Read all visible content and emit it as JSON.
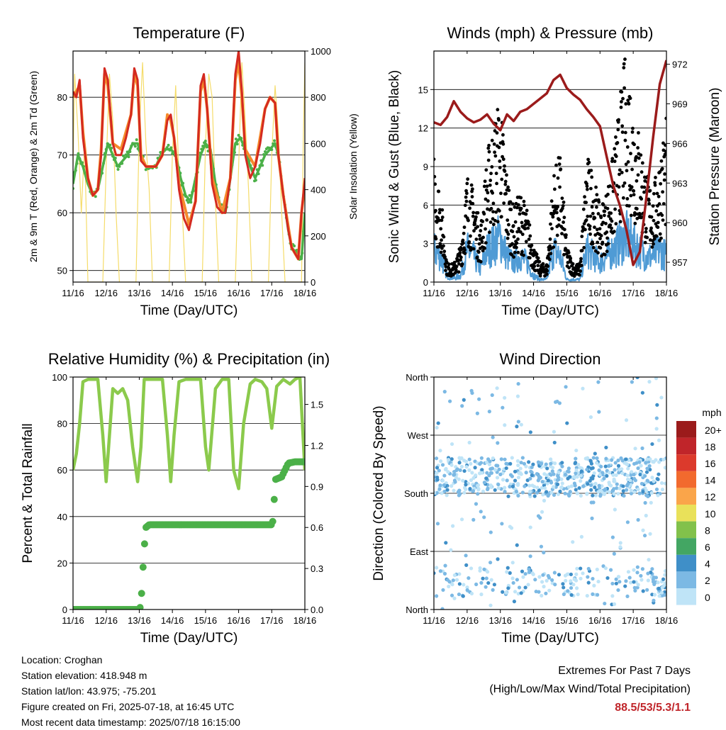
{
  "footer": {
    "location": "Location: Croghan",
    "elevation": "Station elevation: 418.948 m",
    "latlon": "Station lat/lon: 43.975; -75.201",
    "created": "Figure created on Fri, 2025-07-18, at 16:45 UTC",
    "recent": "Most recent data timestamp: 2025/07/18 16:15:00",
    "extremes_title": "Extremes For Past 7 Days",
    "extremes_subtitle": "(High/Low/Max Wind/Total Precipitation)",
    "extremes_values": "88.5/53/5.3/1.1"
  },
  "chart_data": [
    {
      "type": "line",
      "title": "Temperature (F)",
      "xlabel": "Time (Day/UTC)",
      "ylabel": "2m & 9m T (Red, Orange) & 2m Td (Green)",
      "y2label": "Solar Insolation (Yellow)",
      "x_ticks": [
        "11/16",
        "12/16",
        "13/16",
        "14/16",
        "15/16",
        "16/16",
        "17/16",
        "18/16"
      ],
      "xlim": [
        0,
        7
      ],
      "ylim": [
        48,
        88
      ],
      "y_ticks": [
        50,
        60,
        70,
        80
      ],
      "y2lim": [
        0,
        1000
      ],
      "y2_ticks": [
        0,
        200,
        400,
        600,
        800,
        1000
      ],
      "grid": true,
      "colors": {
        "t2m": "#d42a20",
        "t9m": "#f58a2b",
        "td": "#4bb048",
        "solar": "#f5dc6a"
      },
      "series": [
        {
          "key": "t2m",
          "x": [
            0,
            0.1,
            0.2,
            0.3,
            0.45,
            0.6,
            0.75,
            0.85,
            0.95,
            1.05,
            1.2,
            1.3,
            1.45,
            1.6,
            1.75,
            1.85,
            1.95,
            2.05,
            2.2,
            2.35,
            2.5,
            2.7,
            2.85,
            2.95,
            3.05,
            3.2,
            3.35,
            3.5,
            3.7,
            3.85,
            3.95,
            4.05,
            4.2,
            4.35,
            4.5,
            4.6,
            4.75,
            4.9,
            5.0,
            5.1,
            5.2,
            5.35,
            5.5,
            5.65,
            5.8,
            5.95,
            6.1,
            6.2,
            6.35,
            6.5,
            6.6,
            6.7,
            6.8,
            6.9,
            7.0
          ],
          "y": [
            81,
            80,
            83,
            73,
            66,
            63,
            64,
            70,
            85,
            83,
            72,
            70,
            70,
            73,
            77,
            85,
            83,
            69,
            68,
            68,
            68,
            70,
            76,
            77,
            73,
            64,
            59,
            57,
            62,
            82,
            84,
            78,
            65,
            61,
            60,
            60,
            66,
            84,
            88,
            81,
            70,
            66,
            68,
            72,
            78,
            80,
            79,
            70,
            63,
            57,
            54,
            53,
            52,
            60,
            66
          ]
        },
        {
          "key": "t9m",
          "x": [
            0,
            0.2,
            0.3,
            0.45,
            0.6,
            0.75,
            0.85,
            0.95,
            1.05,
            1.2,
            1.45,
            1.6,
            1.75,
            1.85,
            1.95,
            2.05,
            2.2,
            2.5,
            2.7,
            2.85,
            2.95,
            3.05,
            3.2,
            3.5,
            3.7,
            3.85,
            3.95,
            4.05,
            4.2,
            4.5,
            4.75,
            4.9,
            5.0,
            5.1,
            5.2,
            5.5,
            5.8,
            5.95,
            6.1,
            6.2,
            6.35,
            6.6,
            6.8,
            6.9,
            7.0
          ],
          "y": [
            80,
            82,
            74,
            66,
            63,
            64,
            71,
            84,
            82,
            72,
            71,
            74,
            77,
            84,
            82,
            70,
            68,
            68,
            70,
            77,
            76,
            73,
            65,
            58,
            62,
            81,
            83,
            78,
            66,
            60,
            66,
            83,
            86,
            80,
            71,
            68,
            78,
            80,
            79,
            70,
            63,
            54,
            52,
            60,
            65
          ]
        },
        {
          "key": "td",
          "x": [
            0,
            0.15,
            0.3,
            0.45,
            0.6,
            0.75,
            0.9,
            1.05,
            1.2,
            1.35,
            1.5,
            1.65,
            1.8,
            1.95,
            2.05,
            2.2,
            2.35,
            2.5,
            2.65,
            2.8,
            2.95,
            3.1,
            3.25,
            3.4,
            3.55,
            3.7,
            3.85,
            4.0,
            4.15,
            4.3,
            4.45,
            4.6,
            4.75,
            4.9,
            5.05,
            5.2,
            5.35,
            5.5,
            5.65,
            5.8,
            5.95,
            6.1,
            6.2,
            6.35,
            6.5,
            6.6,
            6.75,
            6.9,
            7.0
          ],
          "y": [
            65,
            70,
            68,
            65,
            63,
            64,
            68,
            72,
            70,
            68,
            69,
            70,
            72,
            72,
            70,
            68,
            68,
            68,
            70,
            71,
            71,
            70,
            66,
            63,
            62,
            66,
            70,
            72,
            71,
            65,
            61,
            60,
            66,
            72,
            73,
            71,
            68,
            66,
            68,
            70,
            71,
            72,
            70,
            63,
            57,
            54,
            53,
            52,
            60
          ]
        },
        {
          "key": "solar",
          "x": [
            0,
            0.05,
            0.15,
            0.25,
            0.35,
            0.45,
            0.9,
            1.0,
            1.1,
            1.2,
            1.3,
            1.4,
            1.9,
            2.0,
            2.1,
            2.2,
            2.3,
            2.4,
            2.9,
            3.0,
            3.1,
            3.2,
            3.3,
            3.4,
            3.9,
            4.0,
            4.1,
            4.2,
            4.3,
            4.4,
            4.9,
            5.0,
            5.1,
            5.2,
            5.3,
            5.4,
            5.9,
            6.0,
            6.1,
            6.2,
            6.3,
            6.4,
            6.9,
            6.95,
            7.0
          ],
          "y": [
            500,
            900,
            650,
            300,
            600,
            0,
            0,
            500,
            900,
            700,
            300,
            0,
            0,
            650,
            950,
            600,
            400,
            0,
            0,
            550,
            850,
            450,
            300,
            0,
            0,
            600,
            900,
            800,
            350,
            0,
            0,
            500,
            950,
            700,
            400,
            0,
            0,
            550,
            850,
            650,
            300,
            0,
            0,
            600,
            950
          ]
        }
      ]
    },
    {
      "type": "scatter",
      "title": "Winds (mph) & Pressure (mb)",
      "xlabel": "Time (Day/UTC)",
      "ylabel": "Sonic Wind & Gust (Blue, Black)",
      "y2label": "Station Pressure (Maroon)",
      "x_ticks": [
        "11/16",
        "12/16",
        "13/16",
        "14/16",
        "15/16",
        "16/16",
        "17/16",
        "18/16"
      ],
      "xlim": [
        0,
        7
      ],
      "ylim": [
        0,
        18
      ],
      "y_ticks": [
        0,
        3,
        6,
        9,
        12,
        15
      ],
      "y2lim": [
        955.5,
        973
      ],
      "y2_ticks": [
        957,
        960,
        963,
        966,
        969,
        972
      ],
      "grid": true,
      "colors": {
        "wind": "#4f9bd5",
        "gust": "#000000",
        "pressure": "#9b1b1b"
      },
      "series": [
        {
          "key": "wind",
          "x": [
            0,
            0.2,
            0.4,
            0.6,
            0.8,
            1.0,
            1.2,
            1.4,
            1.6,
            1.8,
            2.0,
            2.2,
            2.4,
            2.6,
            2.8,
            3.0,
            3.2,
            3.4,
            3.6,
            3.8,
            4.0,
            4.2,
            4.4,
            4.6,
            4.8,
            5.0,
            5.2,
            5.4,
            5.6,
            5.8,
            6.0,
            6.2,
            6.4,
            6.6,
            6.8,
            7.0
          ],
          "y": [
            2.5,
            2.0,
            0.5,
            0.3,
            0.5,
            2.5,
            2.0,
            1.0,
            2.5,
            3.0,
            3.5,
            2.0,
            1.5,
            2.0,
            1.5,
            0.5,
            0.2,
            0.2,
            2.5,
            2.0,
            0.2,
            0.2,
            0.2,
            2.5,
            2.0,
            1.5,
            2.0,
            2.5,
            3.0,
            3.5,
            3.0,
            2.5,
            2.0,
            2.0,
            2.5,
            2.0
          ]
        },
        {
          "key": "gust",
          "x": [
            0,
            0.2,
            0.4,
            0.6,
            0.8,
            1.0,
            1.2,
            1.4,
            1.6,
            1.8,
            2.0,
            2.2,
            2.4,
            2.6,
            2.8,
            3.0,
            3.2,
            3.4,
            3.6,
            3.8,
            4.0,
            4.2,
            4.4,
            4.6,
            4.8,
            5.0,
            5.2,
            5.4,
            5.6,
            5.8,
            6.0,
            6.2,
            6.4,
            6.6,
            6.8,
            7.0
          ],
          "y": [
            7,
            5,
            1,
            1,
            2,
            6,
            5,
            3,
            7,
            9,
            10,
            6,
            4,
            5,
            4,
            2,
            1,
            1,
            6,
            7,
            2,
            1,
            1,
            7,
            6,
            4,
            5,
            7,
            10,
            13,
            10,
            8,
            6,
            5,
            7,
            9
          ]
        },
        {
          "key": "pressure",
          "x": [
            0,
            0.2,
            0.4,
            0.6,
            0.8,
            1.0,
            1.2,
            1.4,
            1.6,
            1.8,
            2.0,
            2.2,
            2.4,
            2.6,
            2.8,
            3.0,
            3.2,
            3.4,
            3.6,
            3.8,
            4.0,
            4.2,
            4.4,
            4.6,
            4.8,
            5.0,
            5.2,
            5.4,
            5.6,
            5.8,
            6.0,
            6.2,
            6.4,
            6.6,
            6.8,
            7.0
          ],
          "y": [
            967.6,
            967.4,
            968.0,
            969.2,
            968.4,
            967.9,
            967.6,
            967.8,
            968.2,
            967.5,
            967.0,
            968.2,
            967.7,
            968.4,
            968.6,
            969.0,
            969.4,
            969.8,
            970.8,
            971.2,
            970.2,
            969.7,
            969.3,
            968.6,
            968.0,
            967.3,
            965.0,
            962.8,
            961.3,
            959.4,
            956.8,
            957.8,
            962.0,
            966.5,
            970.5,
            972.3
          ]
        }
      ]
    },
    {
      "type": "line",
      "title": "Relative Humidity (%) & Precipitation (in)",
      "xlabel": "Time (Day/UTC)",
      "ylabel": "Percent & Total Rainfall",
      "x_ticks": [
        "11/16",
        "12/16",
        "13/16",
        "14/16",
        "15/16",
        "16/16",
        "17/16",
        "18/16"
      ],
      "xlim": [
        0,
        7
      ],
      "ylim": [
        0,
        100
      ],
      "y_ticks": [
        0,
        20,
        40,
        60,
        80,
        100
      ],
      "y2lim": [
        0,
        1.7
      ],
      "y2_ticks": [
        "0.0",
        "0.3",
        "0.6",
        "0.9",
        "1.2",
        "1.5"
      ],
      "grid": true,
      "colors": {
        "rh": "#8bca4c",
        "precip": "#4bb048"
      },
      "series": [
        {
          "key": "rh",
          "x": [
            0,
            0.1,
            0.2,
            0.3,
            0.45,
            0.6,
            0.75,
            0.9,
            1.0,
            1.1,
            1.2,
            1.35,
            1.5,
            1.65,
            1.8,
            1.95,
            2.05,
            2.15,
            2.3,
            2.5,
            2.7,
            2.85,
            2.95,
            3.05,
            3.2,
            3.4,
            3.6,
            3.85,
            4.0,
            4.1,
            4.3,
            4.5,
            4.7,
            4.85,
            5.0,
            5.15,
            5.35,
            5.5,
            5.7,
            5.85,
            6.0,
            6.15,
            6.35,
            6.55,
            6.7,
            6.85,
            7.0
          ],
          "y": [
            60,
            67,
            80,
            98,
            99,
            99,
            99,
            75,
            55,
            75,
            95,
            93,
            95,
            90,
            70,
            55,
            70,
            99,
            99,
            99,
            99,
            75,
            55,
            75,
            98,
            99,
            99,
            99,
            70,
            60,
            95,
            99,
            99,
            60,
            52,
            80,
            97,
            99,
            98,
            95,
            78,
            96,
            99,
            97,
            99,
            100,
            60
          ]
        },
        {
          "key": "precip",
          "x": [
            0,
            1.0,
            2.0,
            2.05,
            2.1,
            2.15,
            2.2,
            2.3,
            3.0,
            4.0,
            5.0,
            6.0,
            6.05,
            6.1,
            6.3,
            6.5,
            6.7,
            7.0
          ],
          "y": [
            0,
            0,
            0,
            0.03,
            0.25,
            0.45,
            0.6,
            0.62,
            0.62,
            0.62,
            0.62,
            0.62,
            0.66,
            0.95,
            0.97,
            1.07,
            1.08,
            1.08
          ]
        }
      ]
    },
    {
      "type": "scatter",
      "title": "Wind Direction",
      "xlabel": "Time (Day/UTC)",
      "ylabel": "Direction (Colored By Speed)",
      "x_ticks": [
        "11/16",
        "12/16",
        "13/16",
        "14/16",
        "15/16",
        "16/16",
        "17/16",
        "18/16"
      ],
      "y_ticks": [
        "North",
        "East",
        "South",
        "West",
        "North"
      ],
      "xlim": [
        0,
        7
      ],
      "ylim": [
        0,
        360
      ],
      "legend_title": "mph",
      "legend_labels": [
        "20+",
        "18",
        "16",
        "14",
        "12",
        "10",
        "8",
        "6",
        "4",
        "2",
        "0"
      ],
      "legend_colors": [
        "#9b1b1b",
        "#c0252a",
        "#dc3a2c",
        "#f26a2e",
        "#faa54a",
        "#e9e15a",
        "#82c14b",
        "#43a663",
        "#3f8fc8",
        "#7cb9e4",
        "#bfe4f7"
      ],
      "grid": true
    }
  ]
}
